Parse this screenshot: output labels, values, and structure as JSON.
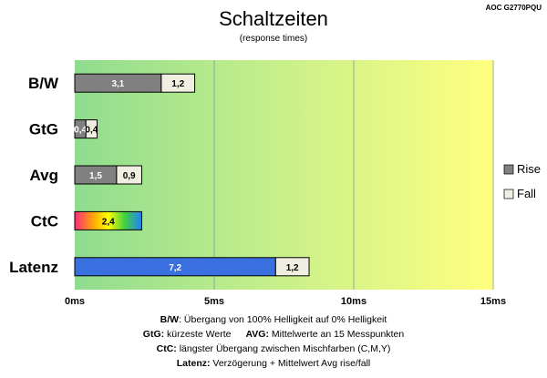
{
  "model": "AOC G2770PQU",
  "chart_data": {
    "type": "bar",
    "title": "Schaltzeiten",
    "subtitle": "(response times)",
    "xlim": [
      0,
      15
    ],
    "x_ticks": [
      "0ms",
      "5ms",
      "10ms",
      "15ms"
    ],
    "x_tick_values": [
      0,
      5,
      10,
      15
    ],
    "categories": [
      "B/W",
      "GtG",
      "Avg",
      "CtC",
      "Latenz"
    ],
    "stacked": true,
    "orientation": "horizontal",
    "series": [
      {
        "name": "Rise",
        "values": [
          3.1,
          0.4,
          1.5,
          2.4,
          7.2
        ],
        "labels": [
          "3,1",
          "0,4",
          "1,5",
          "2,4",
          "7,2"
        ]
      },
      {
        "name": "Fall",
        "values": [
          1.2,
          0.4,
          0.9,
          null,
          1.2
        ],
        "labels": [
          "1,2",
          "0,4",
          "0,9",
          "",
          "1,2"
        ]
      }
    ],
    "legend_position": "right",
    "background_gradient": [
      "#8fdc8f",
      "#c9f08a",
      "#ffff80"
    ],
    "colors": {
      "rise": "#808080",
      "fall": "#f0eee0",
      "latenz": "#3a6fe0",
      "ctc_gradient": [
        "#ff2a7a",
        "#ffb000",
        "#ffff00",
        "#40d040",
        "#2080ff"
      ]
    }
  },
  "footnotes": [
    {
      "bold": "B/W",
      "text": ":  Übergang von 100% Helligkeit auf 0% Helligkeit"
    },
    {
      "bold": "GtG:",
      "text": " kürzeste  Werte"
    },
    {
      "bold": "AVG:",
      "text": " Mittelwerte  an 15 Messpunkten"
    },
    {
      "bold": "CtC:",
      "text": " längster Übergang  zwischen Mischfarben (C,M,Y)"
    },
    {
      "bold": "Latenz:",
      "text": " Verzögerung  + Mittelwert  Avg rise/fall"
    }
  ]
}
